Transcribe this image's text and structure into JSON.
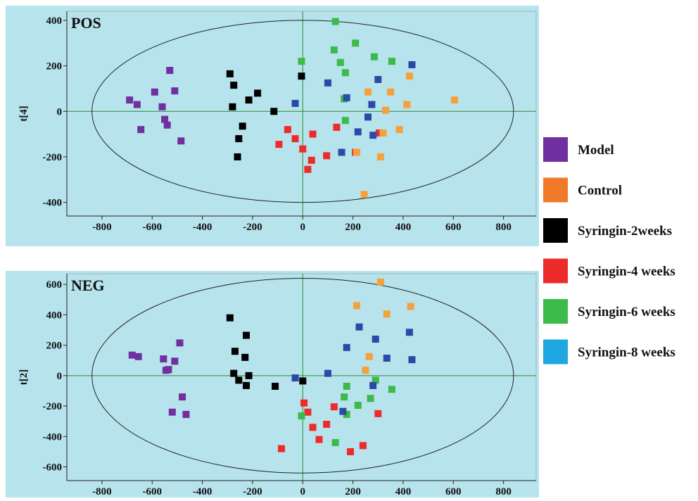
{
  "colors": {
    "Model": "#7030a0",
    "Control": "#f4a13b",
    "Syringin-2weeks": "#000000",
    "Syringin-4 weeks": "#ee2b2b",
    "Syringin-6 weeks": "#3cba4a",
    "Syringin-8 weeks": "#2b4aa8",
    "legend_8weeks": "#1ea7e1",
    "legend_Control": "#f07a2a",
    "panel_bg": "#b7e3ec"
  },
  "legend": {
    "position": "right",
    "entries": [
      {
        "label": "Model",
        "color": "#7030a0"
      },
      {
        "label": "Control",
        "color": "#f07a2a"
      },
      {
        "label": "Syringin-2weeks",
        "color": "#000000"
      },
      {
        "label": "Syringin-4 weeks",
        "color": "#ee2b2b"
      },
      {
        "label": "Syringin-6 weeks",
        "color": "#3cba4a"
      },
      {
        "label": "Syringin-8 weeks",
        "color": "#1ea7e1"
      }
    ]
  },
  "chart_data": [
    {
      "type": "scatter",
      "title": "POS",
      "xlabel": "",
      "ylabel": "t[4]",
      "xlim": [
        -940,
        930
      ],
      "ylim": [
        -460,
        440
      ],
      "xticks": [
        -800,
        -600,
        -400,
        -200,
        0,
        200,
        400,
        600,
        800
      ],
      "yticks": [
        -400,
        -200,
        0,
        200,
        400
      ],
      "ellipse": {
        "rx": 840,
        "ry": 400
      },
      "grid": false,
      "series": [
        {
          "group": "Model",
          "points": [
            [
              -690,
              50
            ],
            [
              -660,
              30
            ],
            [
              -590,
              85
            ],
            [
              -560,
              20
            ],
            [
              -550,
              -35
            ],
            [
              -540,
              -60
            ],
            [
              -530,
              180
            ],
            [
              -510,
              90
            ],
            [
              -485,
              -130
            ],
            [
              -645,
              -80
            ]
          ]
        },
        {
          "group": "Syringin-2weeks",
          "points": [
            [
              -290,
              165
            ],
            [
              -275,
              115
            ],
            [
              -280,
              20
            ],
            [
              -255,
              -120
            ],
            [
              -260,
              -200
            ],
            [
              -240,
              -65
            ],
            [
              -215,
              50
            ],
            [
              -180,
              80
            ],
            [
              -115,
              0
            ],
            [
              -5,
              155
            ]
          ]
        },
        {
          "group": "Syringin-4 weeks",
          "points": [
            [
              -95,
              -145
            ],
            [
              -60,
              -80
            ],
            [
              -30,
              -120
            ],
            [
              0,
              -165
            ],
            [
              20,
              -255
            ],
            [
              35,
              -215
            ],
            [
              40,
              -100
            ],
            [
              95,
              -195
            ],
            [
              135,
              -70
            ],
            [
              210,
              -180
            ],
            [
              305,
              -95
            ]
          ]
        },
        {
          "group": "Syringin-6 weeks",
          "points": [
            [
              -5,
              220
            ],
            [
              125,
              270
            ],
            [
              130,
              395
            ],
            [
              150,
              215
            ],
            [
              165,
              55
            ],
            [
              170,
              170
            ],
            [
              170,
              -40
            ],
            [
              210,
              300
            ],
            [
              285,
              240
            ],
            [
              355,
              220
            ]
          ]
        },
        {
          "group": "Syringin-8 weeks",
          "points": [
            [
              -30,
              35
            ],
            [
              100,
              125
            ],
            [
              155,
              -180
            ],
            [
              175,
              60
            ],
            [
              220,
              -90
            ],
            [
              260,
              -25
            ],
            [
              275,
              30
            ],
            [
              280,
              -105
            ],
            [
              300,
              140
            ],
            [
              435,
              205
            ]
          ]
        },
        {
          "group": "Control",
          "points": [
            [
              215,
              -180
            ],
            [
              245,
              -365
            ],
            [
              260,
              85
            ],
            [
              310,
              -200
            ],
            [
              320,
              -95
            ],
            [
              330,
              5
            ],
            [
              350,
              85
            ],
            [
              385,
              -80
            ],
            [
              415,
              30
            ],
            [
              425,
              155
            ],
            [
              605,
              50
            ]
          ]
        }
      ]
    },
    {
      "type": "scatter",
      "title": "NEG",
      "xlabel": "",
      "ylabel": "t[2]",
      "xlim": [
        -940,
        930
      ],
      "ylim": [
        -690,
        670
      ],
      "xticks": [
        -800,
        -600,
        -400,
        -200,
        0,
        200,
        400,
        600,
        800
      ],
      "yticks": [
        -600,
        -400,
        -200,
        0,
        200,
        400,
        600
      ],
      "ellipse": {
        "rx": 840,
        "ry": 640
      },
      "grid": false,
      "series": [
        {
          "group": "Model",
          "points": [
            [
              -680,
              135
            ],
            [
              -655,
              125
            ],
            [
              -555,
              110
            ],
            [
              -545,
              35
            ],
            [
              -535,
              40
            ],
            [
              -520,
              -240
            ],
            [
              -510,
              95
            ],
            [
              -490,
              215
            ],
            [
              -480,
              -140
            ],
            [
              -465,
              -255
            ]
          ]
        },
        {
          "group": "Syringin-2weeks",
          "points": [
            [
              -290,
              380
            ],
            [
              -275,
              15
            ],
            [
              -270,
              160
            ],
            [
              -255,
              -30
            ],
            [
              -230,
              120
            ],
            [
              -225,
              265
            ],
            [
              -225,
              -65
            ],
            [
              -215,
              0
            ],
            [
              -110,
              -70
            ],
            [
              0,
              -35
            ]
          ]
        },
        {
          "group": "Syringin-4 weeks",
          "points": [
            [
              -85,
              -480
            ],
            [
              5,
              -180
            ],
            [
              20,
              -240
            ],
            [
              40,
              -340
            ],
            [
              65,
              -420
            ],
            [
              95,
              -320
            ],
            [
              125,
              -205
            ],
            [
              190,
              -500
            ],
            [
              240,
              -460
            ],
            [
              300,
              -250
            ]
          ]
        },
        {
          "group": "Syringin-6 weeks",
          "points": [
            [
              -5,
              -265
            ],
            [
              130,
              -440
            ],
            [
              165,
              -140
            ],
            [
              175,
              -70
            ],
            [
              175,
              -255
            ],
            [
              220,
              -195
            ],
            [
              270,
              -150
            ],
            [
              290,
              -30
            ],
            [
              355,
              -90
            ]
          ]
        },
        {
          "group": "Syringin-8 weeks",
          "points": [
            [
              -30,
              -15
            ],
            [
              100,
              15
            ],
            [
              160,
              -235
            ],
            [
              175,
              185
            ],
            [
              225,
              320
            ],
            [
              290,
              240
            ],
            [
              280,
              -65
            ],
            [
              335,
              115
            ],
            [
              425,
              285
            ],
            [
              435,
              105
            ]
          ]
        },
        {
          "group": "Control",
          "points": [
            [
              215,
              460
            ],
            [
              250,
              35
            ],
            [
              265,
              125
            ],
            [
              310,
              615
            ],
            [
              335,
              405
            ],
            [
              430,
              455
            ]
          ]
        }
      ]
    }
  ]
}
